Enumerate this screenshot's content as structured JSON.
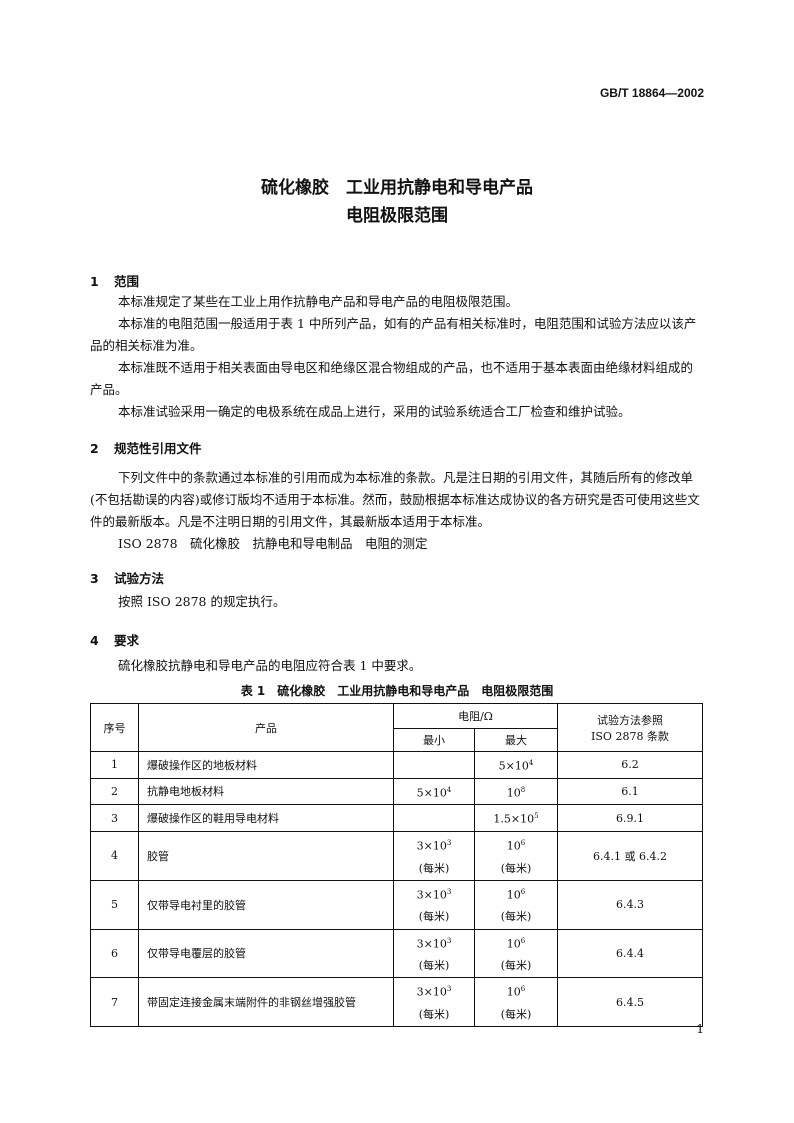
{
  "header": {
    "standard_no": "GB/T 18864—2002"
  },
  "title": {
    "line1": "硫化橡胶　工业用抗静电和导电产品",
    "line2": "电阻极限范围"
  },
  "sections": [
    {
      "num": "1",
      "title": "范围",
      "paragraphs": [
        "本标准规定了某些在工业上用作抗静电产品和导电产品的电阻极限范围。",
        "本标准的电阻范围一般适用于表 1 中所列产品，如有的产品有相关标准时，电阻范围和试验方法应以该产品的相关标准为准。",
        "本标准既不适用于相关表面由导电区和绝缘区混合物组成的产品，也不适用于基本表面由绝缘材料组成的产品。",
        "本标准试验采用一确定的电极系统在成品上进行，采用的试验系统适合工厂检查和维护试验。"
      ]
    },
    {
      "num": "2",
      "title": "规范性引用文件",
      "paragraphs": [
        "下列文件中的条款通过本标准的引用而成为本标准的条款。凡是注日期的引用文件，其随后所有的修改单(不包括勘误的内容)或修订版均不适用于本标准。然而，鼓励根据本标准达成协议的各方研究是否可使用这些文件的最新版本。凡是不注明日期的引用文件，其最新版本适用于本标准。",
        "ISO 2878　硫化橡胶　抗静电和导电制品　电阻的测定"
      ]
    },
    {
      "num": "3",
      "title": "试验方法",
      "paragraphs": [
        "按照 ISO 2878 的规定执行。"
      ]
    },
    {
      "num": "4",
      "title": "要求",
      "paragraphs": [
        "硫化橡胶抗静电和导电产品的电阻应符合表 1 中要求。"
      ]
    }
  ],
  "table": {
    "caption": "表 1　硫化橡胶　工业用抗静电和导电产品　电阻极限范围",
    "headers": {
      "no": "序号",
      "product": "产品",
      "resistance": "电阻/Ω",
      "min": "最小",
      "max": "最大",
      "method": "试验方法参照",
      "method2": "ISO 2878 条款"
    },
    "per_meter": "(每米)",
    "rows": [
      {
        "no": "1",
        "product": "爆破操作区的地板材料",
        "min_base": "",
        "min_exp": "",
        "max_base": "5×10",
        "max_exp": "4",
        "method": "6.2"
      },
      {
        "no": "2",
        "product": "抗静电地板材料",
        "min_base": "5×10",
        "min_exp": "4",
        "max_base": "10",
        "max_exp": "8",
        "method": "6.1"
      },
      {
        "no": "3",
        "product": "爆破操作区的鞋用导电材料",
        "min_base": "",
        "min_exp": "",
        "max_base": "1.5×10",
        "max_exp": "5",
        "method": "6.9.1"
      },
      {
        "no": "4",
        "product": "胶管",
        "min_base": "3×10",
        "min_exp": "3",
        "max_base": "10",
        "max_exp": "6",
        "method": "6.4.1 或 6.4.2"
      },
      {
        "no": "5",
        "product": "仅带导电衬里的胶管",
        "min_base": "3×10",
        "min_exp": "3",
        "max_base": "10",
        "max_exp": "6",
        "method": "6.4.3"
      },
      {
        "no": "6",
        "product": "仅带导电覆层的胶管",
        "min_base": "3×10",
        "min_exp": "3",
        "max_base": "10",
        "max_exp": "6",
        "method": "6.4.4"
      },
      {
        "no": "7",
        "product": "带固定连接金属末端附件的非钢丝增强胶管",
        "min_base": "3×10",
        "min_exp": "3",
        "max_base": "10",
        "max_exp": "6",
        "method": "6.4.5"
      }
    ]
  },
  "page_number": "1"
}
